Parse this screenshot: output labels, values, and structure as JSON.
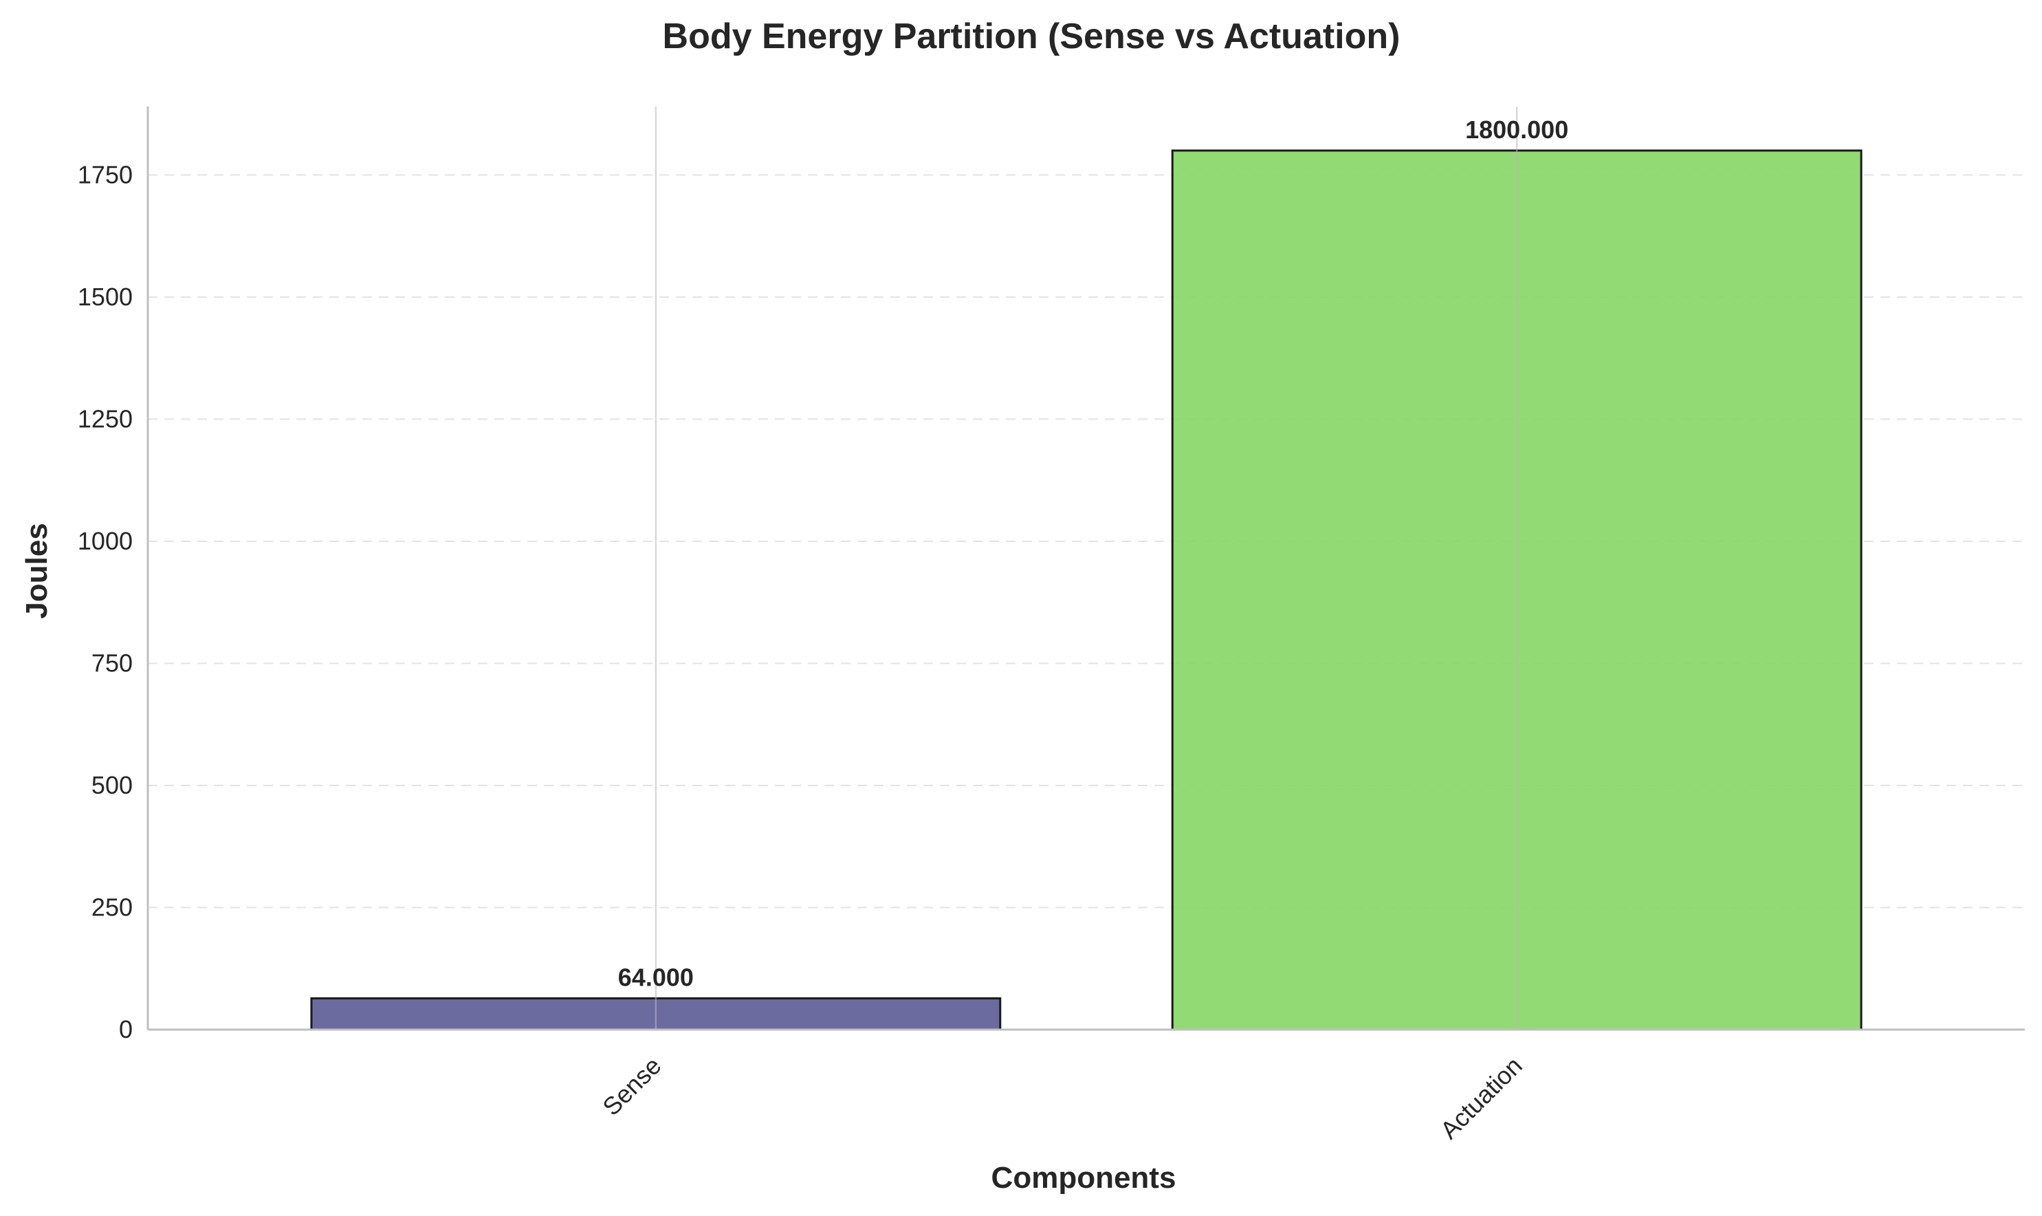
{
  "chart_data": {
    "type": "bar",
    "title": "Body Energy Partition (Sense vs Actuation)",
    "xlabel": "Components",
    "ylabel": "Joules",
    "categories": [
      "Sense",
      "Actuation"
    ],
    "values": [
      64.0,
      1800.0
    ],
    "data_labels": [
      "64.000",
      "1800.000"
    ],
    "ylim": [
      0,
      1890
    ],
    "yticks": [
      0,
      250,
      500,
      750,
      1000,
      1250,
      1500,
      1750
    ],
    "bar_colors": [
      "#5b5b96",
      "#86d665"
    ],
    "edge_color": "#1a1a1a",
    "grid": {
      "horizontal": true,
      "vertical": true,
      "style": "dashed-horizontal"
    },
    "xtick_rotation": "45-degree"
  }
}
